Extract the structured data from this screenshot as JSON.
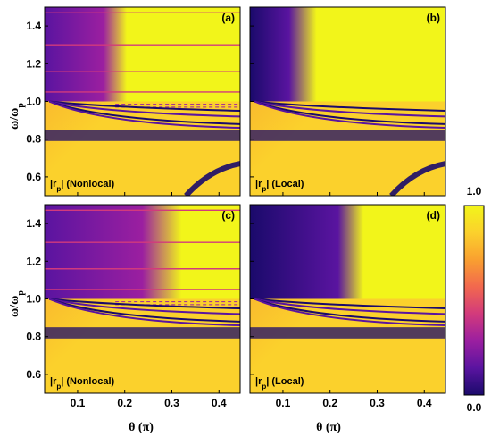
{
  "chart_data": [
    {
      "type": "heatmap",
      "panel_label": "(a)",
      "annotation": "|r",
      "annotation_sub": "p",
      "annotation_suffix": "| (Nonlocal)",
      "model": "nonlocal",
      "bright_region": "wide"
    },
    {
      "type": "heatmap",
      "panel_label": "(b)",
      "annotation": "|r",
      "annotation_sub": "p",
      "annotation_suffix": "| (Local)",
      "model": "local",
      "bright_region": "wide"
    },
    {
      "type": "heatmap",
      "panel_label": "(c)",
      "annotation": "|r",
      "annotation_sub": "p",
      "annotation_suffix": "| (Nonlocal)",
      "model": "nonlocal",
      "bright_region": "narrow"
    },
    {
      "type": "heatmap",
      "panel_label": "(d)",
      "annotation": "|r",
      "annotation_sub": "p",
      "annotation_suffix": "| (Local)",
      "model": "local",
      "bright_region": "narrow"
    }
  ],
  "axes": {
    "x_range": [
      0.03,
      0.445
    ],
    "y_range": [
      0.5,
      1.5
    ],
    "x_ticks": [
      0.1,
      0.2,
      0.3,
      0.4
    ],
    "x_tick_labels": [
      "0.1",
      "0.2",
      "0.3",
      "0.4"
    ],
    "y_ticks": [
      0.6,
      0.8,
      1.0,
      1.2,
      1.4
    ],
    "y_tick_labels": [
      "0.6",
      "0.8",
      "1.0",
      "1.2",
      "1.4"
    ],
    "xlabel": "θ (π)",
    "ylabel": "ω/ω",
    "ylabel_sub": "p"
  },
  "colorbar": {
    "range": [
      0.0,
      1.0
    ],
    "max_label": "1.0",
    "min_label": "0.0",
    "colors": [
      "#1a0a6b",
      "#5a14a0",
      "#9b1fa0",
      "#d23a7c",
      "#f2684e",
      "#f9a030",
      "#fbd12c",
      "#f2f51a"
    ]
  }
}
